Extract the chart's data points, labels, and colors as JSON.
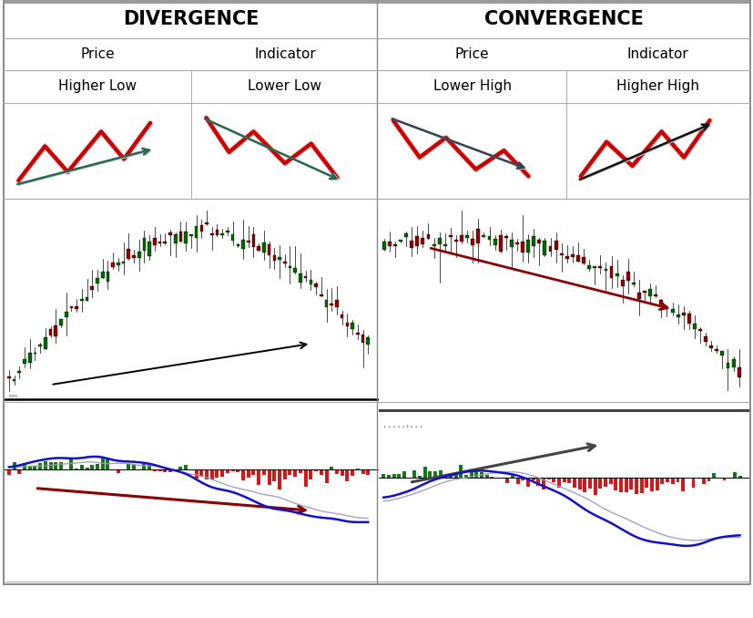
{
  "title_divergence": "DIVERGENCE",
  "title_convergence": "CONVERGENCE",
  "col1_label": "Price",
  "col2_label": "Indicator",
  "col3_label": "Price",
  "col4_label": "Indicator",
  "row1_label_div": "Higher Low",
  "row1_label_ind": "Lower Low",
  "row1_label_conv_price": "Lower High",
  "row1_label_conv_ind": "Higher High",
  "header_bg": "#d6e8f5",
  "bg_white": "#ffffff",
  "dark_red": "#8b0000",
  "red": "#cc0000",
  "green": "#006600",
  "dark_green": "#004400",
  "blue": "#1111cc",
  "black": "#000000",
  "arrow_green": "#336655",
  "arrow_dark": "#222222"
}
